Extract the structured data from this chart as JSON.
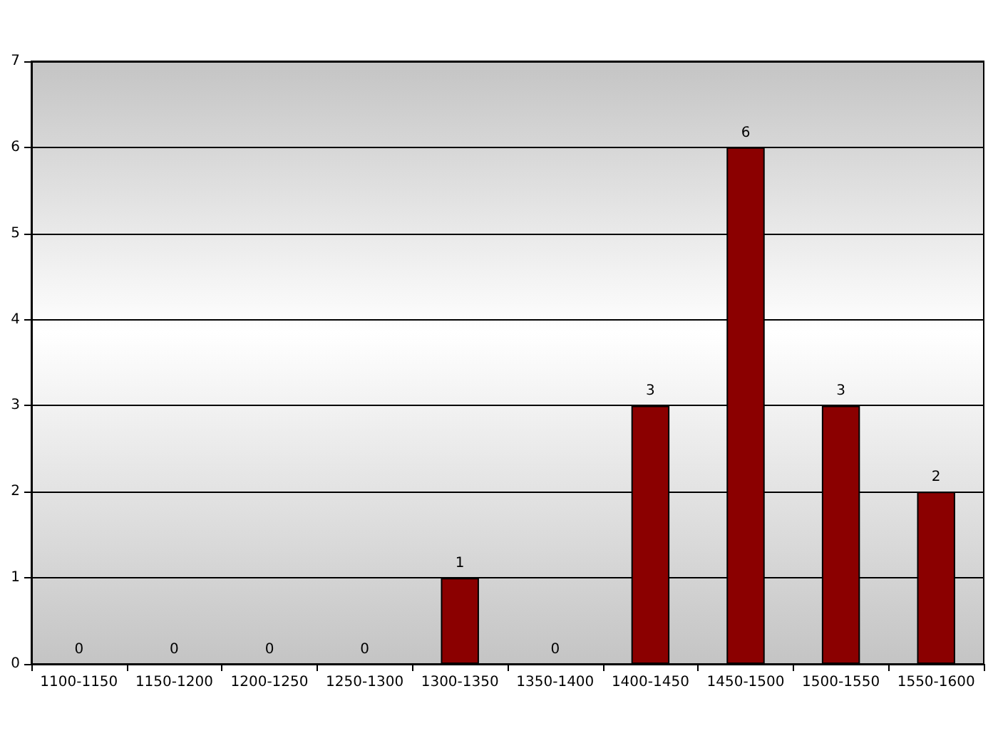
{
  "chart_data": {
    "type": "bar",
    "categories": [
      "1100-1150",
      "1150-1200",
      "1200-1250",
      "1250-1300",
      "1300-1350",
      "1350-1400",
      "1400-1450",
      "1450-1500",
      "1500-1550",
      "1550-1600"
    ],
    "values": [
      0,
      0,
      0,
      0,
      1,
      0,
      3,
      6,
      3,
      2
    ],
    "color": "#8b0000",
    "ylim": [
      0,
      7
    ],
    "yticks": [
      0,
      1,
      2,
      3,
      4,
      5,
      6,
      7
    ],
    "grid": "y",
    "data_labels": true
  }
}
